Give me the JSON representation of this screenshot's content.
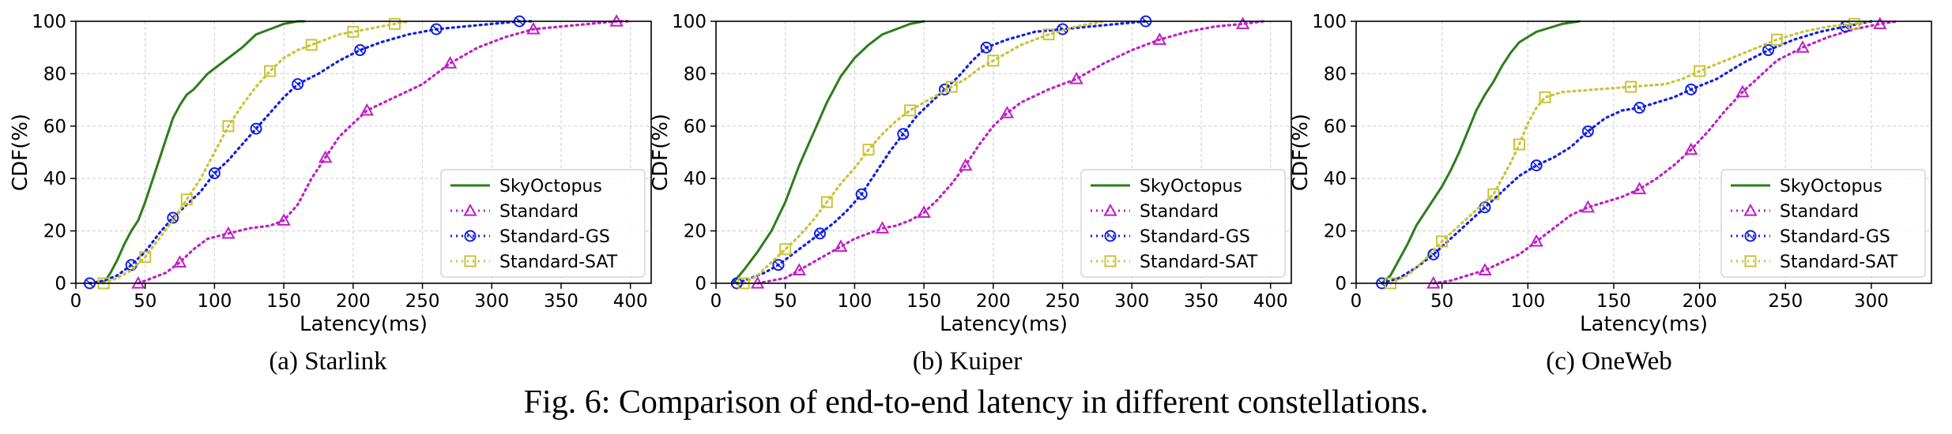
{
  "figure_caption": "Fig. 6: Comparison of end-to-end latency in different constellations.",
  "series_styles": [
    {
      "name": "SkyOctopus",
      "color": "#2e7d1a",
      "dash": "",
      "marker": "none"
    },
    {
      "name": "Standard",
      "color": "#c01ec8",
      "dash": "2 5",
      "marker": "triangle"
    },
    {
      "name": "Standard-GS",
      "color": "#1020e0",
      "dash": "2 5",
      "marker": "circle"
    },
    {
      "name": "Standard-SAT",
      "color": "#c8c43a",
      "dash": "2 5",
      "marker": "square"
    }
  ],
  "chart_data": [
    {
      "type": "line",
      "caption": "(a) Starlink",
      "xlabel": "Latency(ms)",
      "ylabel": "CDF(%)",
      "xlim": [
        0,
        415
      ],
      "ylim": [
        0,
        100
      ],
      "xticks": [
        0,
        50,
        100,
        150,
        200,
        250,
        300,
        350,
        400
      ],
      "yticks": [
        0,
        20,
        40,
        60,
        80,
        100
      ],
      "grid": true,
      "legend_position": "lower-right",
      "series": [
        {
          "name": "SkyOctopus",
          "x": [
            20,
            25,
            30,
            35,
            40,
            45,
            50,
            55,
            60,
            65,
            70,
            75,
            80,
            85,
            90,
            95,
            100,
            110,
            120,
            130,
            140,
            150,
            160,
            165
          ],
          "y": [
            0,
            4,
            9,
            15,
            20,
            24,
            31,
            39,
            47,
            55,
            63,
            68,
            72,
            74,
            77,
            80,
            82,
            86,
            90,
            95,
            97,
            99,
            100,
            100
          ]
        },
        {
          "name": "Standard",
          "x": [
            45,
            55,
            65,
            75,
            85,
            95,
            110,
            125,
            140,
            150,
            160,
            170,
            180,
            190,
            200,
            210,
            230,
            250,
            270,
            290,
            310,
            330,
            350,
            370,
            390,
            400
          ],
          "y": [
            0,
            2,
            4,
            8,
            13,
            17,
            19,
            21,
            22,
            24,
            30,
            40,
            48,
            56,
            61,
            66,
            71,
            76,
            84,
            90,
            94,
            97,
            98,
            99,
            100,
            100
          ]
        },
        {
          "name": "Standard-GS",
          "x": [
            10,
            20,
            30,
            40,
            50,
            60,
            70,
            80,
            90,
            100,
            110,
            120,
            130,
            140,
            150,
            160,
            175,
            190,
            205,
            220,
            240,
            260,
            280,
            300,
            320,
            330
          ],
          "y": [
            0,
            1,
            3,
            7,
            12,
            19,
            25,
            30,
            35,
            42,
            47,
            53,
            59,
            65,
            71,
            76,
            80,
            85,
            89,
            92,
            95,
            97,
            98,
            99,
            100,
            100
          ]
        },
        {
          "name": "Standard-SAT",
          "x": [
            20,
            30,
            40,
            50,
            60,
            70,
            80,
            90,
            100,
            110,
            120,
            130,
            140,
            150,
            160,
            170,
            180,
            190,
            200,
            210,
            220,
            230,
            240
          ],
          "y": [
            0,
            2,
            5,
            10,
            17,
            24,
            32,
            40,
            50,
            60,
            68,
            75,
            81,
            86,
            89,
            91,
            93,
            95,
            96,
            97,
            98,
            99,
            100
          ]
        }
      ]
    },
    {
      "type": "line",
      "caption": "(b) Kuiper",
      "xlabel": "Latency(ms)",
      "ylabel": "CDF(%)",
      "xlim": [
        0,
        415
      ],
      "ylim": [
        0,
        100
      ],
      "xticks": [
        0,
        50,
        100,
        150,
        200,
        250,
        300,
        350,
        400
      ],
      "yticks": [
        0,
        20,
        40,
        60,
        80,
        100
      ],
      "grid": true,
      "legend_position": "lower-right",
      "series": [
        {
          "name": "SkyOctopus",
          "x": [
            12,
            20,
            30,
            40,
            50,
            60,
            70,
            80,
            90,
            100,
            110,
            120,
            130,
            140,
            150
          ],
          "y": [
            0,
            5,
            12,
            20,
            31,
            45,
            57,
            69,
            79,
            86,
            91,
            95,
            97,
            99,
            100
          ]
        },
        {
          "name": "Standard",
          "x": [
            30,
            40,
            50,
            60,
            70,
            80,
            90,
            100,
            110,
            120,
            130,
            140,
            150,
            160,
            170,
            180,
            190,
            200,
            210,
            220,
            240,
            260,
            280,
            300,
            320,
            340,
            360,
            380,
            395
          ],
          "y": [
            0,
            1,
            2,
            5,
            8,
            11,
            14,
            17,
            19,
            21,
            22,
            24,
            27,
            32,
            38,
            45,
            53,
            60,
            65,
            69,
            74,
            78,
            84,
            89,
            93,
            96,
            98,
            99,
            100
          ]
        },
        {
          "name": "Standard-GS",
          "x": [
            15,
            25,
            35,
            45,
            55,
            65,
            75,
            85,
            95,
            105,
            115,
            125,
            135,
            145,
            155,
            165,
            175,
            185,
            195,
            210,
            230,
            250,
            270,
            290,
            310
          ],
          "y": [
            0,
            2,
            4,
            7,
            11,
            15,
            19,
            23,
            28,
            34,
            42,
            50,
            57,
            64,
            69,
            74,
            79,
            85,
            90,
            93,
            96,
            97,
            98,
            99,
            100
          ]
        },
        {
          "name": "Standard-SAT",
          "x": [
            20,
            30,
            40,
            50,
            60,
            70,
            80,
            90,
            100,
            110,
            120,
            130,
            140,
            150,
            160,
            170,
            180,
            190,
            200,
            210,
            220,
            240,
            260,
            280
          ],
          "y": [
            0,
            3,
            8,
            13,
            18,
            24,
            31,
            38,
            44,
            51,
            57,
            62,
            66,
            69,
            72,
            75,
            78,
            82,
            85,
            88,
            91,
            95,
            98,
            100
          ]
        }
      ]
    },
    {
      "type": "line",
      "caption": "(c) OneWeb",
      "xlabel": "Latency(ms)",
      "ylabel": "CDF(%)",
      "xlim": [
        0,
        335
      ],
      "ylim": [
        0,
        100
      ],
      "xticks": [
        0,
        50,
        100,
        150,
        200,
        250,
        300
      ],
      "yticks": [
        0,
        20,
        40,
        60,
        80,
        100
      ],
      "grid": true,
      "legend_position": "lower-right",
      "series": [
        {
          "name": "SkyOctopus",
          "x": [
            15,
            20,
            25,
            30,
            35,
            40,
            45,
            50,
            55,
            60,
            65,
            70,
            75,
            80,
            85,
            90,
            95,
            100,
            105,
            110,
            120,
            130
          ],
          "y": [
            0,
            3,
            9,
            15,
            22,
            27,
            32,
            37,
            43,
            50,
            58,
            66,
            72,
            77,
            83,
            88,
            92,
            94,
            96,
            97,
            99,
            100
          ]
        },
        {
          "name": "Standard",
          "x": [
            45,
            55,
            65,
            75,
            85,
            95,
            105,
            115,
            125,
            135,
            145,
            155,
            165,
            175,
            185,
            195,
            205,
            215,
            225,
            235,
            245,
            260,
            275,
            290,
            305,
            315
          ],
          "y": [
            0,
            1,
            3,
            5,
            8,
            11,
            16,
            21,
            26,
            29,
            31,
            33,
            36,
            40,
            45,
            51,
            58,
            66,
            73,
            79,
            85,
            90,
            94,
            97,
            99,
            100
          ]
        },
        {
          "name": "Standard-GS",
          "x": [
            15,
            25,
            35,
            45,
            55,
            65,
            75,
            85,
            95,
            105,
            115,
            125,
            135,
            145,
            155,
            165,
            175,
            185,
            195,
            210,
            225,
            240,
            255,
            270,
            285,
            300
          ],
          "y": [
            0,
            2,
            6,
            11,
            17,
            23,
            29,
            35,
            41,
            45,
            48,
            52,
            58,
            63,
            66,
            67,
            69,
            71,
            74,
            78,
            84,
            89,
            93,
            96,
            98,
            100
          ]
        },
        {
          "name": "Standard-SAT",
          "x": [
            20,
            30,
            40,
            50,
            60,
            70,
            80,
            85,
            90,
            95,
            100,
            105,
            110,
            120,
            140,
            160,
            180,
            190,
            200,
            215,
            230,
            245,
            260,
            275,
            290,
            300
          ],
          "y": [
            0,
            3,
            9,
            16,
            22,
            28,
            34,
            40,
            46,
            53,
            61,
            67,
            71,
            73,
            74,
            75,
            76,
            78,
            81,
            85,
            89,
            93,
            96,
            98,
            99,
            100
          ]
        }
      ]
    }
  ]
}
